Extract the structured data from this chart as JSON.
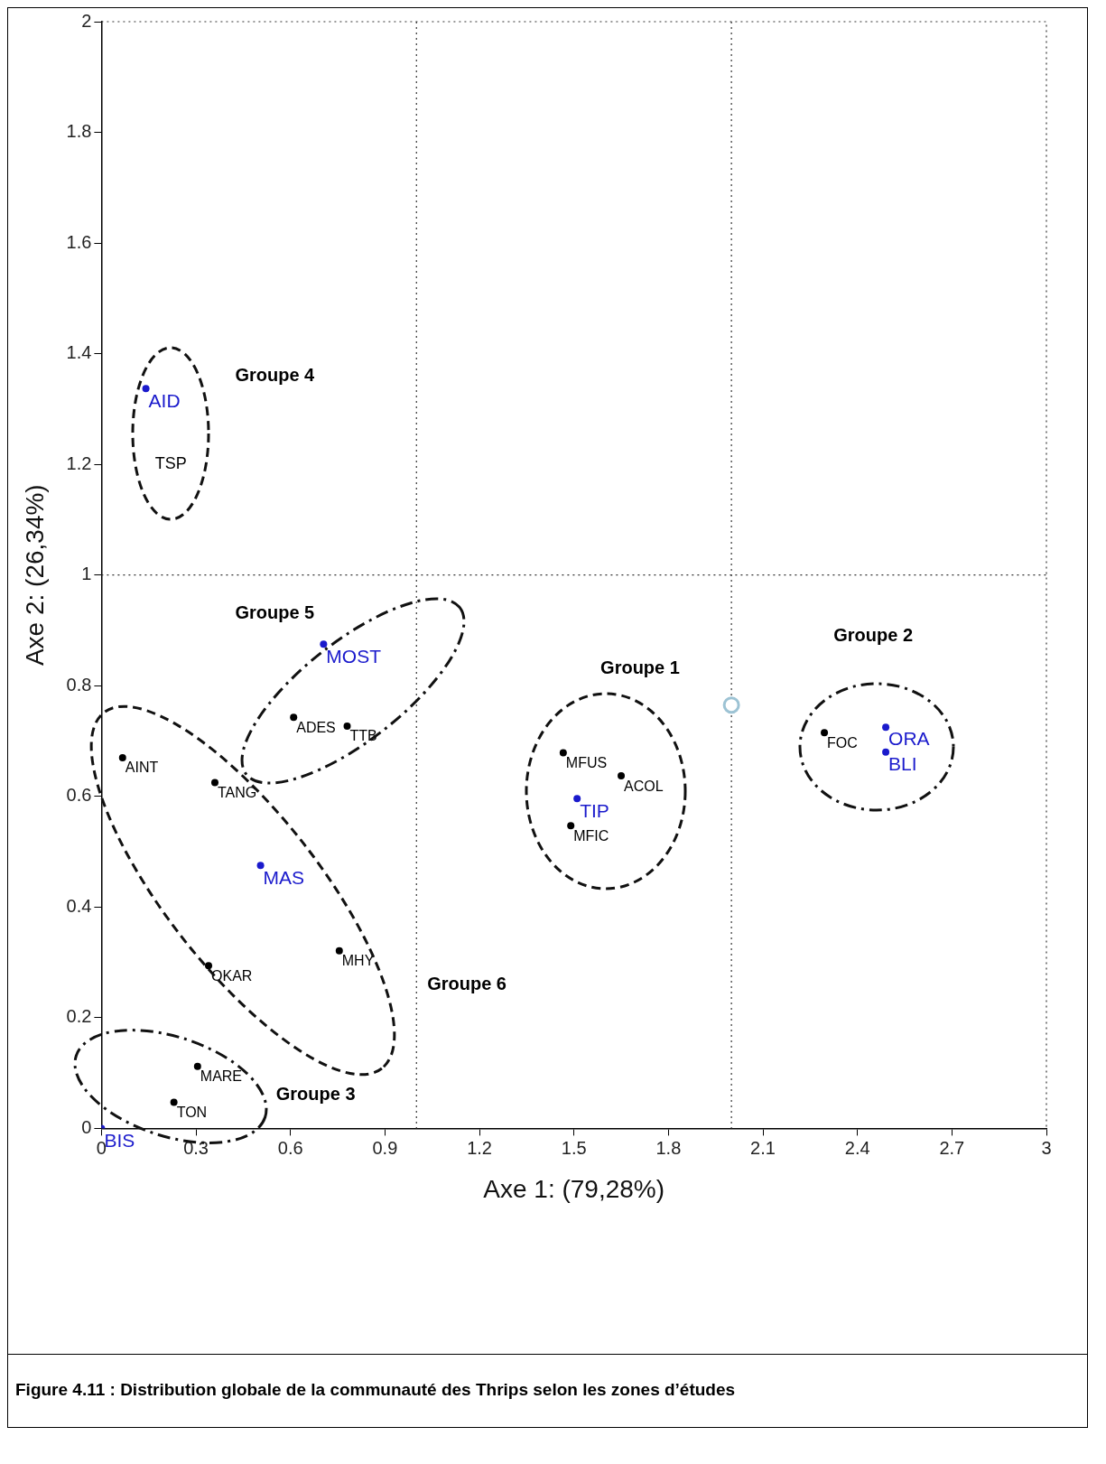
{
  "chart_data": {
    "type": "scatter",
    "xlabel": "Axe 1: (79,28%)",
    "ylabel": "Axe 2: (26,34%)",
    "xlim": [
      0,
      3
    ],
    "ylim": [
      0,
      2
    ],
    "xticks": [
      0,
      0.3,
      0.6,
      0.9,
      1.2,
      1.5,
      1.8,
      2.1,
      2.4,
      2.7,
      3
    ],
    "yticks": [
      0,
      0.2,
      0.4,
      0.6,
      0.8,
      1,
      1.2,
      1.4,
      1.6,
      1.8,
      2
    ],
    "grid": false,
    "legend": false,
    "marker": "circle",
    "ref_lines": [
      {
        "axis": "x",
        "value": 1,
        "color": "#333333",
        "line_style": "dotted"
      },
      {
        "axis": "x",
        "value": 2,
        "color": "#333333",
        "line_style": "dotted"
      },
      {
        "axis": "y",
        "value": 1,
        "color": "#333333",
        "line_style": "dotted"
      }
    ],
    "series": [
      {
        "type": "scatter",
        "color": "#000000",
        "x": [
          0.61,
          0.78,
          0.067,
          0.36,
          0.755,
          0.34,
          0.305,
          0.23,
          1.466,
          1.65,
          1.49,
          2.295
        ],
        "values": [
          0.743,
          0.727,
          0.67,
          0.625,
          0.321,
          0.294,
          0.112,
          0.047,
          0.679,
          0.637,
          0.547,
          0.715
        ],
        "value_labels": [
          "ADES",
          "TTB",
          "AINT",
          "TANG",
          "MHY",
          "OKAR",
          "MARE",
          "TON",
          "MFUS",
          "ACOL",
          "MFIC",
          "FOC"
        ]
      },
      {
        "type": "scatter",
        "color": "#1a1acc",
        "x": [
          0.141,
          0.705,
          0.505,
          0,
          1.51,
          2.49,
          2.49
        ],
        "values": [
          1.337,
          0.875,
          0.475,
          0,
          0.596,
          0.725,
          0.68
        ],
        "value_labels": [
          "AID",
          "MOST",
          "MAS",
          "BIS",
          "TIP",
          "ORA",
          "BLI"
        ]
      },
      {
        "type": "scatter",
        "color": "#9dc3d4",
        "x": [
          2
        ],
        "values": [
          0.765
        ]
      }
    ],
    "annotations": [
      "TSP",
      "Groupe 4",
      "Groupe 5",
      "Groupe 1",
      "Groupe 2",
      "Groupe 6",
      "Groupe 3",
      "Figure 4.11 : Distribution globale de la communauté des Thrips selon les zones d’études"
    ]
  }
}
